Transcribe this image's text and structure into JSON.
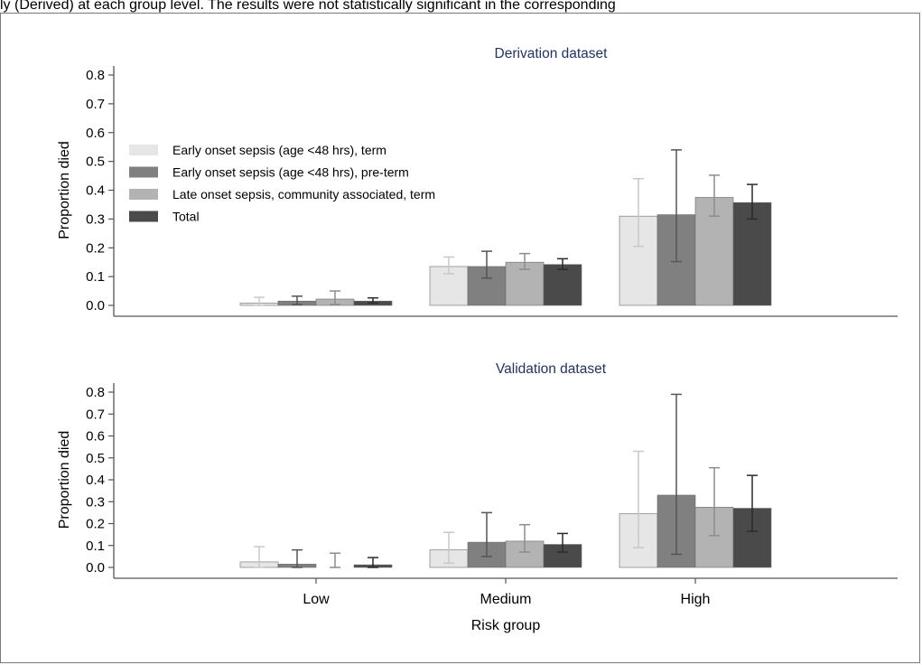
{
  "caption_fragment": "ly (Derived) at each group level. The results were not statistically significant in the corresponding",
  "colors": {
    "series": [
      "#e6e6e6",
      "#808080",
      "#b3b3b3",
      "#4a4a4a"
    ],
    "error_bars": [
      "#c8c8c8",
      "#555555",
      "#8c8c8c",
      "#2b2b2b"
    ],
    "title_text": "#24335a",
    "axis": "#555555"
  },
  "chart_data": [
    {
      "type": "bar",
      "title": "Derivation dataset",
      "xlabel": "",
      "ylabel": "Proportion died",
      "ylim": [
        0,
        0.8
      ],
      "yticks": [
        "0.0",
        "0.1",
        "0.2",
        "0.3",
        "0.4",
        "0.5",
        "0.6",
        "0.7",
        "0.8"
      ],
      "categories": [
        "Low",
        "Medium",
        "High"
      ],
      "legend_placement": "top-left",
      "grid": false,
      "series": [
        {
          "name": "Early onset sepsis (age <48 hrs), term",
          "values": [
            0.008,
            0.135,
            0.31
          ],
          "lower": [
            0.0,
            0.11,
            0.205
          ],
          "upper": [
            0.028,
            0.168,
            0.44
          ]
        },
        {
          "name": "Early onset sepsis (age <48 hrs), pre-term",
          "values": [
            0.015,
            0.135,
            0.315
          ],
          "lower": [
            0.003,
            0.095,
            0.152
          ],
          "upper": [
            0.032,
            0.188,
            0.54
          ]
        },
        {
          "name": "Late onset sepsis, community associated, term",
          "values": [
            0.022,
            0.15,
            0.375
          ],
          "lower": [
            0.003,
            0.125,
            0.31
          ],
          "upper": [
            0.05,
            0.18,
            0.452
          ]
        },
        {
          "name": "Total",
          "values": [
            0.015,
            0.142,
            0.357
          ],
          "lower": [
            0.008,
            0.125,
            0.3
          ],
          "upper": [
            0.026,
            0.162,
            0.42
          ]
        }
      ]
    },
    {
      "type": "bar",
      "title": "Validation dataset",
      "xlabel": "Risk group",
      "ylabel": "Proportion died",
      "ylim": [
        0,
        0.8
      ],
      "yticks": [
        "0.0",
        "0.1",
        "0.2",
        "0.3",
        "0.4",
        "0.5",
        "0.6",
        "0.7",
        "0.8"
      ],
      "categories": [
        "Low",
        "Medium",
        "High"
      ],
      "grid": false,
      "series": [
        {
          "name": "Early onset sepsis (age <48 hrs), term",
          "values": [
            0.025,
            0.08,
            0.245
          ],
          "lower": [
            0.0,
            0.02,
            0.09
          ],
          "upper": [
            0.095,
            0.16,
            0.53
          ]
        },
        {
          "name": "Early onset sepsis (age <48 hrs), pre-term",
          "values": [
            0.015,
            0.115,
            0.33
          ],
          "lower": [
            0.0,
            0.05,
            0.06
          ],
          "upper": [
            0.08,
            0.25,
            0.79
          ]
        },
        {
          "name": "Late onset sepsis, community associated, term",
          "values": [
            0.0,
            0.12,
            0.275
          ],
          "lower": [
            0.0,
            0.07,
            0.145
          ],
          "upper": [
            0.065,
            0.195,
            0.455
          ]
        },
        {
          "name": "Total",
          "values": [
            0.012,
            0.105,
            0.27
          ],
          "lower": [
            0.0,
            0.07,
            0.165
          ],
          "upper": [
            0.045,
            0.155,
            0.42
          ]
        }
      ]
    }
  ]
}
